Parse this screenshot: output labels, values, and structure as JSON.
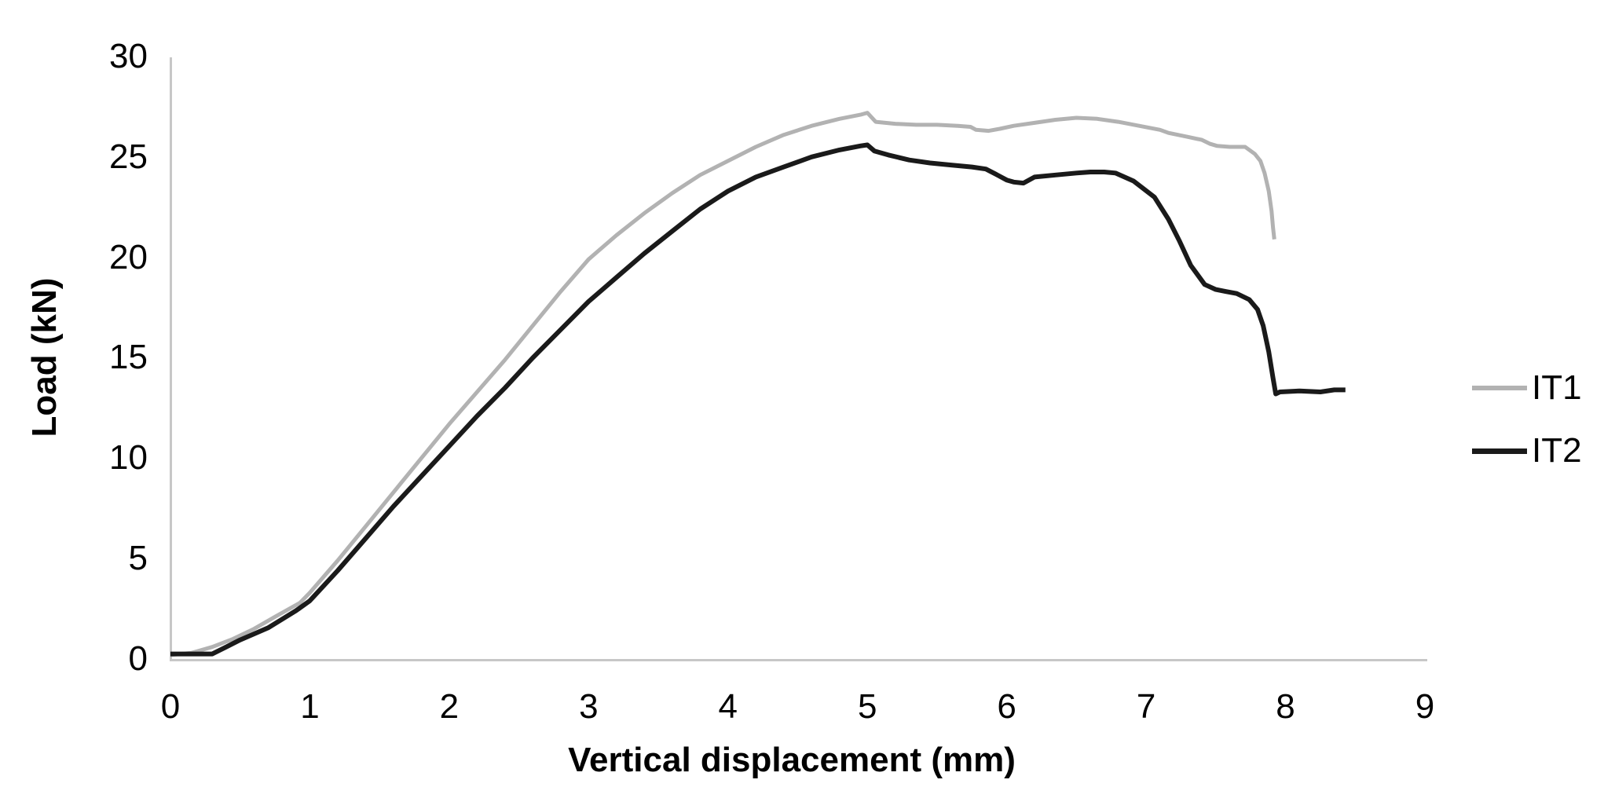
{
  "chart_data": {
    "type": "line",
    "title": "",
    "xlabel": "Vertical displacement (mm)",
    "ylabel": "Load (kN)",
    "xlim": [
      0,
      9
    ],
    "ylim": [
      0,
      30
    ],
    "x_ticks": [
      0,
      1,
      2,
      3,
      4,
      5,
      6,
      7,
      8,
      9
    ],
    "y_ticks": [
      0,
      5,
      10,
      15,
      20,
      25,
      30
    ],
    "grid": false,
    "legend_position": "right-middle",
    "series": [
      {
        "name": "IT1",
        "color": "#b2b2b2",
        "stroke_width": 5,
        "points": [
          [
            0,
            0.2
          ],
          [
            0.15,
            0.3
          ],
          [
            0.3,
            0.6
          ],
          [
            0.45,
            1.0
          ],
          [
            0.6,
            1.5
          ],
          [
            0.75,
            2.1
          ],
          [
            0.93,
            2.8
          ],
          [
            1.0,
            3.3
          ],
          [
            1.2,
            4.9
          ],
          [
            1.4,
            6.6
          ],
          [
            1.6,
            8.3
          ],
          [
            1.8,
            10.0
          ],
          [
            2.0,
            11.7
          ],
          [
            2.2,
            13.3
          ],
          [
            2.4,
            14.9
          ],
          [
            2.6,
            16.6
          ],
          [
            2.8,
            18.3
          ],
          [
            3.0,
            19.9
          ],
          [
            3.2,
            21.1
          ],
          [
            3.4,
            22.2
          ],
          [
            3.6,
            23.2
          ],
          [
            3.8,
            24.1
          ],
          [
            4.0,
            24.8
          ],
          [
            4.2,
            25.5
          ],
          [
            4.4,
            26.1
          ],
          [
            4.6,
            26.55
          ],
          [
            4.8,
            26.9
          ],
          [
            4.95,
            27.1
          ],
          [
            5.0,
            27.2
          ],
          [
            5.06,
            26.75
          ],
          [
            5.2,
            26.65
          ],
          [
            5.35,
            26.6
          ],
          [
            5.5,
            26.6
          ],
          [
            5.65,
            26.55
          ],
          [
            5.74,
            26.5
          ],
          [
            5.78,
            26.35
          ],
          [
            5.87,
            26.3
          ],
          [
            5.95,
            26.4
          ],
          [
            6.05,
            26.55
          ],
          [
            6.2,
            26.7
          ],
          [
            6.35,
            26.85
          ],
          [
            6.5,
            26.95
          ],
          [
            6.65,
            26.9
          ],
          [
            6.8,
            26.75
          ],
          [
            6.95,
            26.55
          ],
          [
            7.1,
            26.35
          ],
          [
            7.16,
            26.2
          ],
          [
            7.3,
            26.0
          ],
          [
            7.4,
            25.85
          ],
          [
            7.46,
            25.65
          ],
          [
            7.51,
            25.55
          ],
          [
            7.6,
            25.5
          ],
          [
            7.71,
            25.5
          ],
          [
            7.78,
            25.15
          ],
          [
            7.82,
            24.8
          ],
          [
            7.85,
            24.2
          ],
          [
            7.88,
            23.3
          ],
          [
            7.9,
            22.3
          ],
          [
            7.91,
            21.5
          ],
          [
            7.92,
            20.9
          ]
        ]
      },
      {
        "name": "IT2",
        "color": "#1a1a1a",
        "stroke_width": 6,
        "points": [
          [
            0,
            0.25
          ],
          [
            0.3,
            0.25
          ],
          [
            0.4,
            0.6
          ],
          [
            0.5,
            0.95
          ],
          [
            0.7,
            1.55
          ],
          [
            0.9,
            2.4
          ],
          [
            1.0,
            2.9
          ],
          [
            1.2,
            4.4
          ],
          [
            1.4,
            6.0
          ],
          [
            1.6,
            7.6
          ],
          [
            1.8,
            9.1
          ],
          [
            2.0,
            10.6
          ],
          [
            2.2,
            12.1
          ],
          [
            2.4,
            13.5
          ],
          [
            2.6,
            15.0
          ],
          [
            2.8,
            16.4
          ],
          [
            3.0,
            17.8
          ],
          [
            3.2,
            19.0
          ],
          [
            3.4,
            20.2
          ],
          [
            3.6,
            21.3
          ],
          [
            3.8,
            22.4
          ],
          [
            4.0,
            23.3
          ],
          [
            4.2,
            24.0
          ],
          [
            4.4,
            24.5
          ],
          [
            4.6,
            25.0
          ],
          [
            4.8,
            25.35
          ],
          [
            4.95,
            25.55
          ],
          [
            5.0,
            25.6
          ],
          [
            5.05,
            25.3
          ],
          [
            5.15,
            25.1
          ],
          [
            5.3,
            24.85
          ],
          [
            5.45,
            24.7
          ],
          [
            5.6,
            24.6
          ],
          [
            5.75,
            24.5
          ],
          [
            5.85,
            24.4
          ],
          [
            5.92,
            24.15
          ],
          [
            6.0,
            23.85
          ],
          [
            6.05,
            23.75
          ],
          [
            6.12,
            23.7
          ],
          [
            6.2,
            24.0
          ],
          [
            6.35,
            24.1
          ],
          [
            6.5,
            24.2
          ],
          [
            6.6,
            24.25
          ],
          [
            6.7,
            24.25
          ],
          [
            6.78,
            24.2
          ],
          [
            6.91,
            23.8
          ],
          [
            7.06,
            23.0
          ],
          [
            7.16,
            21.9
          ],
          [
            7.24,
            20.8
          ],
          [
            7.32,
            19.6
          ],
          [
            7.42,
            18.65
          ],
          [
            7.5,
            18.4
          ],
          [
            7.57,
            18.3
          ],
          [
            7.65,
            18.2
          ],
          [
            7.74,
            17.9
          ],
          [
            7.8,
            17.4
          ],
          [
            7.84,
            16.6
          ],
          [
            7.88,
            15.3
          ],
          [
            7.91,
            14.0
          ],
          [
            7.93,
            13.2
          ],
          [
            7.96,
            13.3
          ],
          [
            8.1,
            13.35
          ],
          [
            8.25,
            13.3
          ],
          [
            8.35,
            13.4
          ],
          [
            8.43,
            13.4
          ]
        ]
      }
    ]
  },
  "legend": {
    "items": [
      {
        "label": "IT1",
        "color": "#b2b2b2",
        "swatch_thickness": 6
      },
      {
        "label": "IT2",
        "color": "#1a1a1a",
        "swatch_thickness": 7
      }
    ]
  },
  "colors": {
    "background": "#ffffff",
    "axis_line": "#c7c7c7",
    "text": "#000000"
  }
}
